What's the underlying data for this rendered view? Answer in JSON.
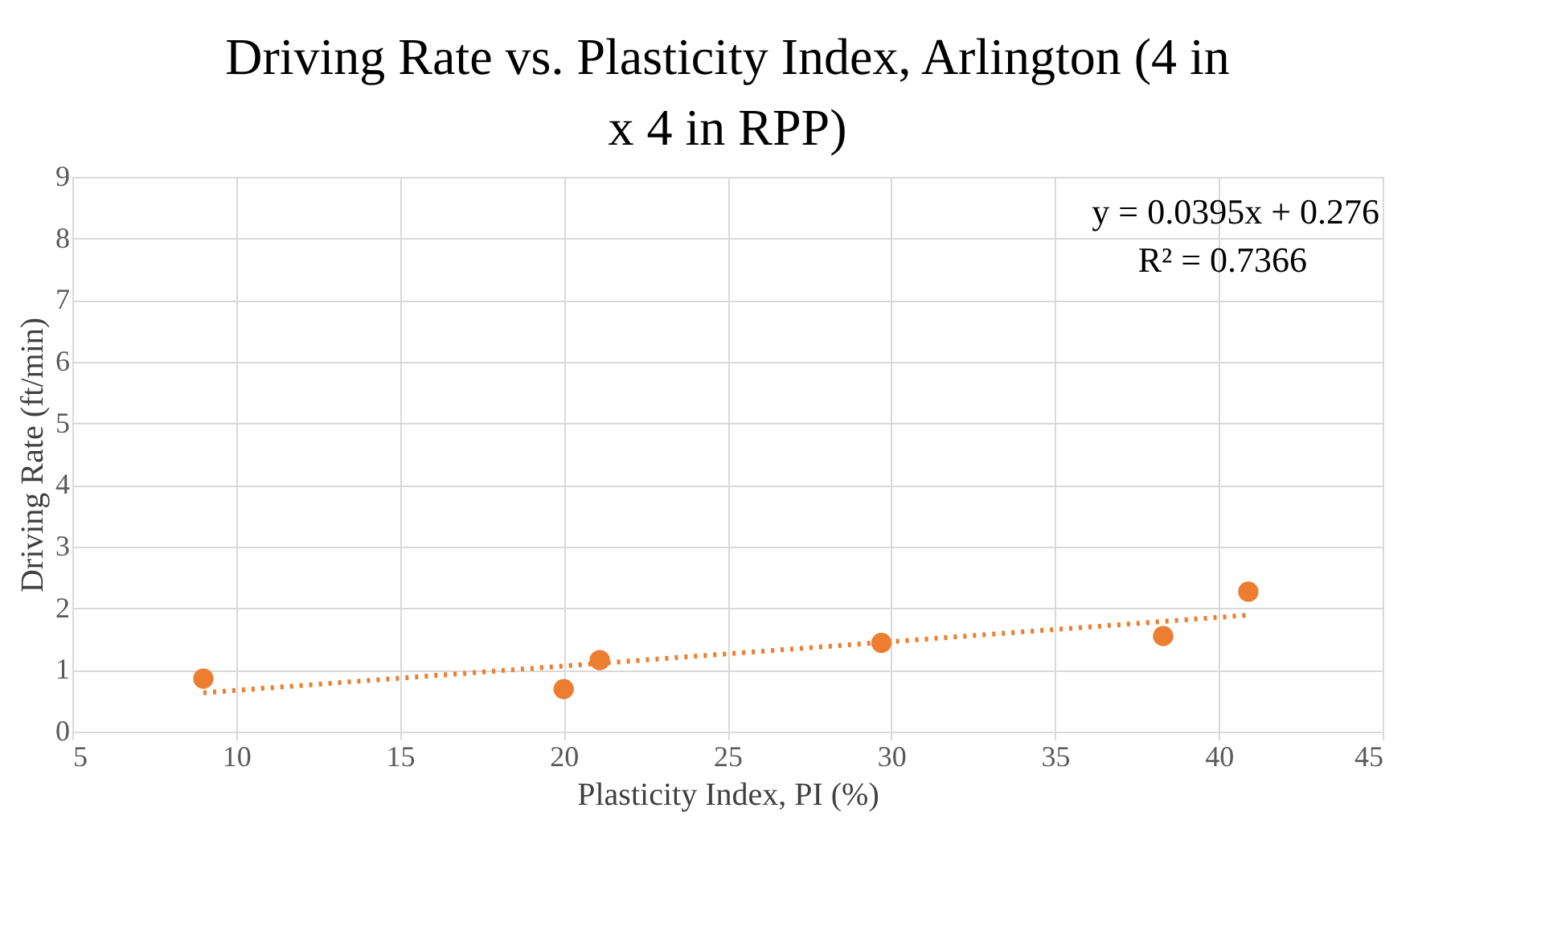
{
  "chart_data": {
    "type": "scatter",
    "title": "Driving Rate vs. Plasticity Index, Arlington (4 in x 4 in RPP)",
    "xlabel": "Plasticity Index, PI (%)",
    "ylabel": "Driving Rate (ft/min)",
    "xlim": [
      5,
      45
    ],
    "xticks": [
      5,
      10,
      15,
      20,
      25,
      30,
      35,
      40,
      45
    ],
    "ylim": [
      0,
      9
    ],
    "yticks": [
      0,
      1,
      2,
      3,
      4,
      5,
      6,
      7,
      8,
      9
    ],
    "grid": true,
    "series": [
      {
        "color": "#ed7d31",
        "marker": "circle",
        "x": [
          9,
          20,
          21.1,
          29.7,
          38.3,
          40.9
        ],
        "values": [
          0.86,
          0.69,
          1.16,
          1.44,
          1.55,
          2.27
        ]
      },
      {
        "type": "line",
        "color": "#ed7d31",
        "marker": "none",
        "line_style": "dotted",
        "x": [
          9,
          40.9
        ],
        "values": [
          0.63,
          1.89
        ]
      }
    ],
    "annotations": [
      "y = 0.0395x + 0.276",
      "R² = 0.7366"
    ]
  }
}
